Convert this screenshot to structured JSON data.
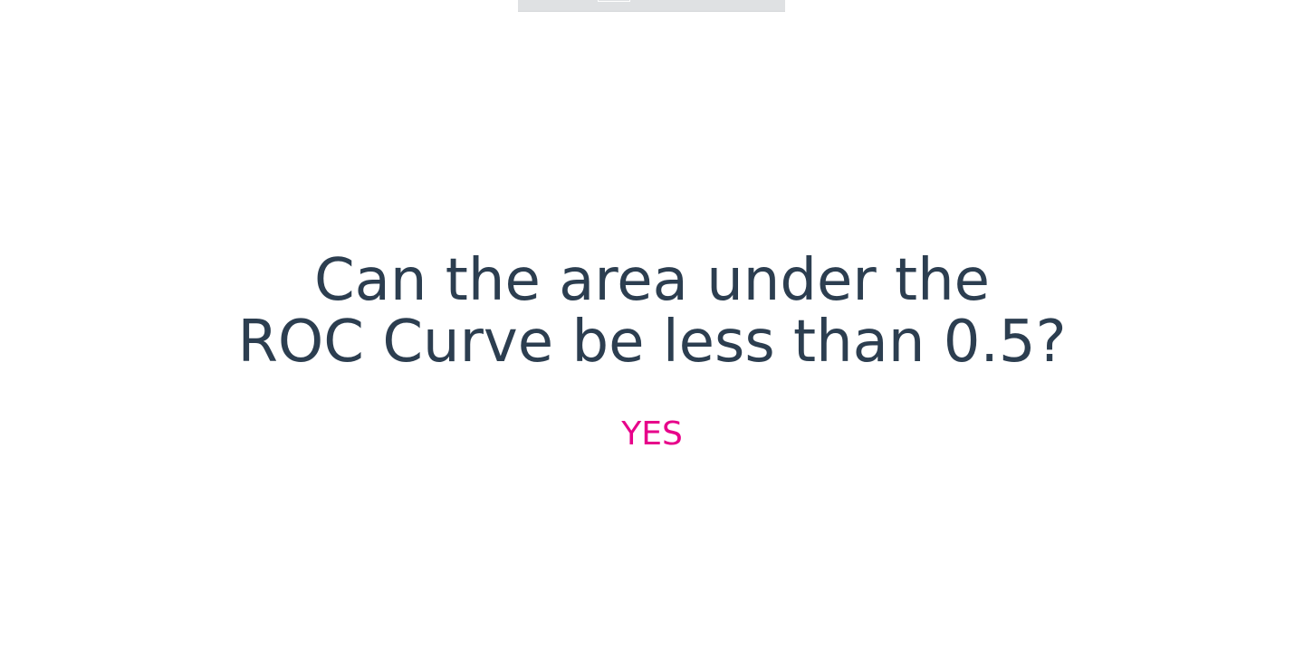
{
  "slide": {
    "question_line1": "Can the area under the",
    "question_line2": "ROC Curve be less than 0.5?",
    "answer": "YES"
  },
  "colors": {
    "question_text": "#2c3e50",
    "answer_text": "#e7008a",
    "top_bar": "#dfe1e3",
    "background": "#ffffff"
  }
}
